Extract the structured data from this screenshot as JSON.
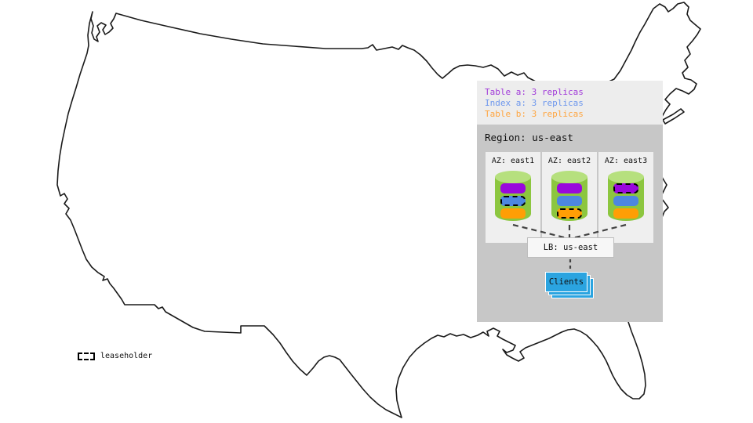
{
  "colors": {
    "purple": "#9908DC",
    "blue": "#4D87E0",
    "orange": "#FF9E05",
    "green_body": "#8CC63F",
    "green_top": "#B6E07E",
    "clients_blue": "#2BA4E0",
    "legend_purple": "#A13BD9",
    "legend_blue": "#6D97ED",
    "legend_orange": "#FFA53F",
    "region_bg": "#C7C7C7",
    "panel_bg": "#EDEDED",
    "az_bg": "#EFEFEF",
    "map_stroke": "#1A1A1A",
    "connector": "#424242"
  },
  "legend": {
    "items": [
      {
        "label": "Table a: 3 replicas",
        "color": "#A13BD9"
      },
      {
        "label": "Index a: 3 replicas",
        "color": "#6D97ED"
      },
      {
        "label": "Table b: 3 replicas",
        "color": "#FFA53F"
      }
    ]
  },
  "region": {
    "title": "Region: us-east",
    "azs": [
      {
        "label": "AZ: east1",
        "replicas": [
          {
            "name": "table-a",
            "color": "purple",
            "leaseholder": false
          },
          {
            "name": "index-a",
            "color": "blue",
            "leaseholder": true
          },
          {
            "name": "table-b",
            "color": "orange",
            "leaseholder": false
          }
        ]
      },
      {
        "label": "AZ: east2",
        "replicas": [
          {
            "name": "table-a",
            "color": "purple",
            "leaseholder": false
          },
          {
            "name": "index-a",
            "color": "blue",
            "leaseholder": false
          },
          {
            "name": "table-b",
            "color": "orange",
            "leaseholder": true
          }
        ]
      },
      {
        "label": "AZ: east3",
        "replicas": [
          {
            "name": "table-a",
            "color": "purple",
            "leaseholder": true
          },
          {
            "name": "index-a",
            "color": "blue",
            "leaseholder": false
          },
          {
            "name": "table-b",
            "color": "orange",
            "leaseholder": false
          }
        ]
      }
    ],
    "load_balancer": {
      "label": "LB: us-east"
    },
    "clients": {
      "label": "Clients"
    }
  },
  "map_legend": {
    "label": "leaseholder"
  }
}
